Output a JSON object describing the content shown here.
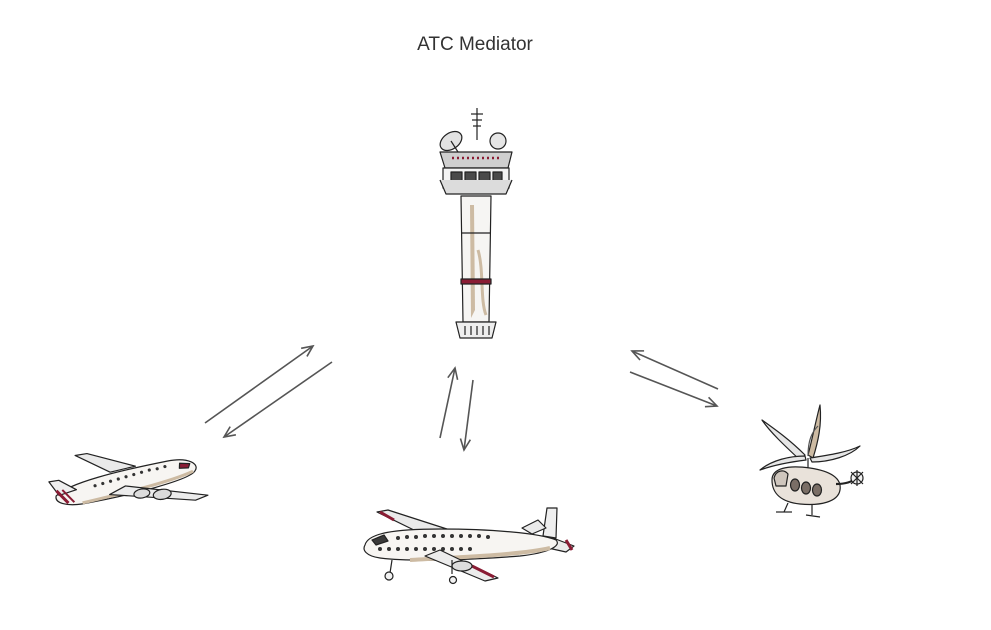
{
  "diagram": {
    "title": "ATC Mediator",
    "nodes": [
      {
        "id": "tower",
        "icon": "control-tower-icon"
      },
      {
        "id": "jet",
        "icon": "jet-airliner-icon"
      },
      {
        "id": "turboprop",
        "icon": "turboprop-plane-icon"
      },
      {
        "id": "helicopter",
        "icon": "helicopter-icon"
      }
    ],
    "links": [
      {
        "from": "jet",
        "to": "tower"
      },
      {
        "from": "tower",
        "to": "jet"
      },
      {
        "from": "turboprop",
        "to": "tower"
      },
      {
        "from": "tower",
        "to": "turboprop"
      },
      {
        "from": "helicopter",
        "to": "tower"
      },
      {
        "from": "tower",
        "to": "helicopter"
      }
    ],
    "colors": {
      "arrow": "#555555",
      "outline": "#222222",
      "accent": "#8a1c34",
      "tan": "#cdbba3",
      "gray": "#b5b5b5"
    }
  }
}
